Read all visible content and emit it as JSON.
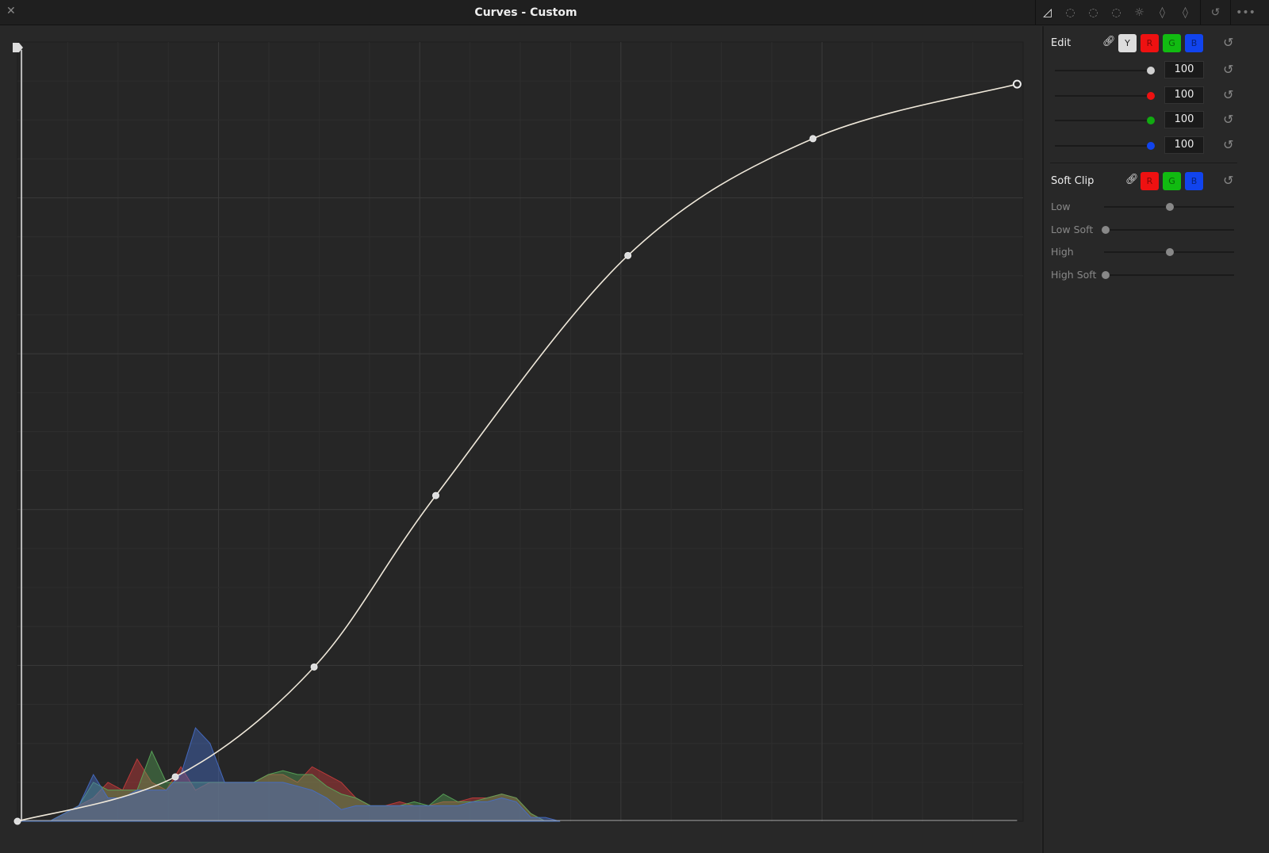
{
  "window": {
    "title": "Curves - Custom",
    "close_icon": "close-icon"
  },
  "toolbar": {
    "icons": [
      "curves-custom-icon",
      "hue-vs-hue-icon",
      "hue-vs-sat-icon",
      "hue-vs-lum-icon",
      "lum-vs-sat-icon",
      "sat-vs-sat-icon",
      "sat-vs-lum-icon"
    ],
    "active": "curves-custom-icon",
    "reset_icon": "reset-icon",
    "more_icon": "more-icon"
  },
  "edit": {
    "label": "Edit",
    "channels": [
      {
        "key": "Y",
        "color": "#dddddd"
      },
      {
        "key": "R",
        "color": "#ee1111"
      },
      {
        "key": "G",
        "color": "#11bb11"
      },
      {
        "key": "B",
        "color": "#1144ee"
      }
    ],
    "intensity": [
      {
        "channel": "Y",
        "value": "100",
        "color": "#d0d0d0"
      },
      {
        "channel": "R",
        "value": "100",
        "color": "#ee1111"
      },
      {
        "channel": "G",
        "value": "100",
        "color": "#11aa11"
      },
      {
        "channel": "B",
        "value": "100",
        "color": "#1144ee"
      }
    ]
  },
  "soft_clip": {
    "label": "Soft Clip",
    "channels": [
      {
        "key": "R",
        "color": "#ee1111"
      },
      {
        "key": "G",
        "color": "#11bb11"
      },
      {
        "key": "B",
        "color": "#1144ee"
      }
    ],
    "sliders": [
      {
        "label": "Low",
        "value": 0.5
      },
      {
        "label": "Low Soft",
        "value": 0
      },
      {
        "label": "High",
        "value": 0.5
      },
      {
        "label": "High Soft",
        "value": 0
      }
    ]
  },
  "curve": {
    "points": [
      [
        0,
        0
      ],
      [
        0.157,
        0.057
      ],
      [
        0.295,
        0.198
      ],
      [
        0.416,
        0.418
      ],
      [
        0.607,
        0.726
      ],
      [
        0.791,
        0.876
      ],
      [
        0.994,
        0.946
      ]
    ],
    "color": "#efe8da"
  },
  "histogram": {
    "red": [
      0,
      0,
      0,
      0.01,
      0.02,
      0.03,
      0.05,
      0.04,
      0.08,
      0.05,
      0.04,
      0.07,
      0.04,
      0.05,
      0.05,
      0.05,
      0.05,
      0.06,
      0.06,
      0.05,
      0.07,
      0.06,
      0.05,
      0.03,
      0.02,
      0.02,
      0.025,
      0.02,
      0.02,
      0.025,
      0.025,
      0.03,
      0.03,
      0.035,
      0.03,
      0.01,
      0,
      0
    ],
    "green": [
      0,
      0,
      0,
      0.01,
      0.02,
      0.05,
      0.04,
      0.04,
      0.04,
      0.09,
      0.05,
      0.05,
      0.05,
      0.05,
      0.05,
      0.05,
      0.05,
      0.06,
      0.065,
      0.06,
      0.06,
      0.045,
      0.035,
      0.03,
      0.02,
      0.02,
      0.02,
      0.025,
      0.02,
      0.035,
      0.025,
      0.025,
      0.03,
      0.035,
      0.03,
      0.01,
      0,
      0
    ],
    "blue": [
      0,
      0,
      0,
      0.01,
      0.02,
      0.06,
      0.03,
      0.03,
      0.04,
      0.04,
      0.04,
      0.06,
      0.12,
      0.1,
      0.05,
      0.05,
      0.05,
      0.05,
      0.05,
      0.045,
      0.04,
      0.03,
      0.015,
      0.02,
      0.02,
      0.02,
      0.02,
      0.02,
      0.02,
      0.02,
      0.02,
      0.025,
      0.025,
      0.03,
      0.025,
      0.005,
      0.005,
      0
    ]
  }
}
